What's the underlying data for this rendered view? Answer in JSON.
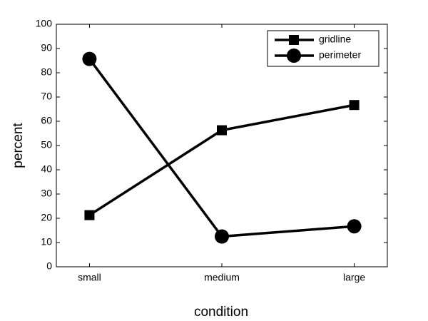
{
  "chart_data": {
    "type": "line",
    "categories": [
      "small",
      "medium",
      "large"
    ],
    "series": [
      {
        "name": "gridline",
        "color": "#000000",
        "marker": "square",
        "values": [
          21.3,
          56.3,
          66.7
        ]
      },
      {
        "name": "perimeter",
        "color": "#000000",
        "marker": "circle",
        "values": [
          85.7,
          12.5,
          16.7
        ]
      }
    ],
    "xlabel": "condition",
    "ylabel": "percent",
    "ylim": [
      0,
      100
    ],
    "yticks": [
      0,
      10,
      20,
      30,
      40,
      50,
      60,
      70,
      80,
      90,
      100
    ],
    "grid": false,
    "legend": "upper right"
  }
}
